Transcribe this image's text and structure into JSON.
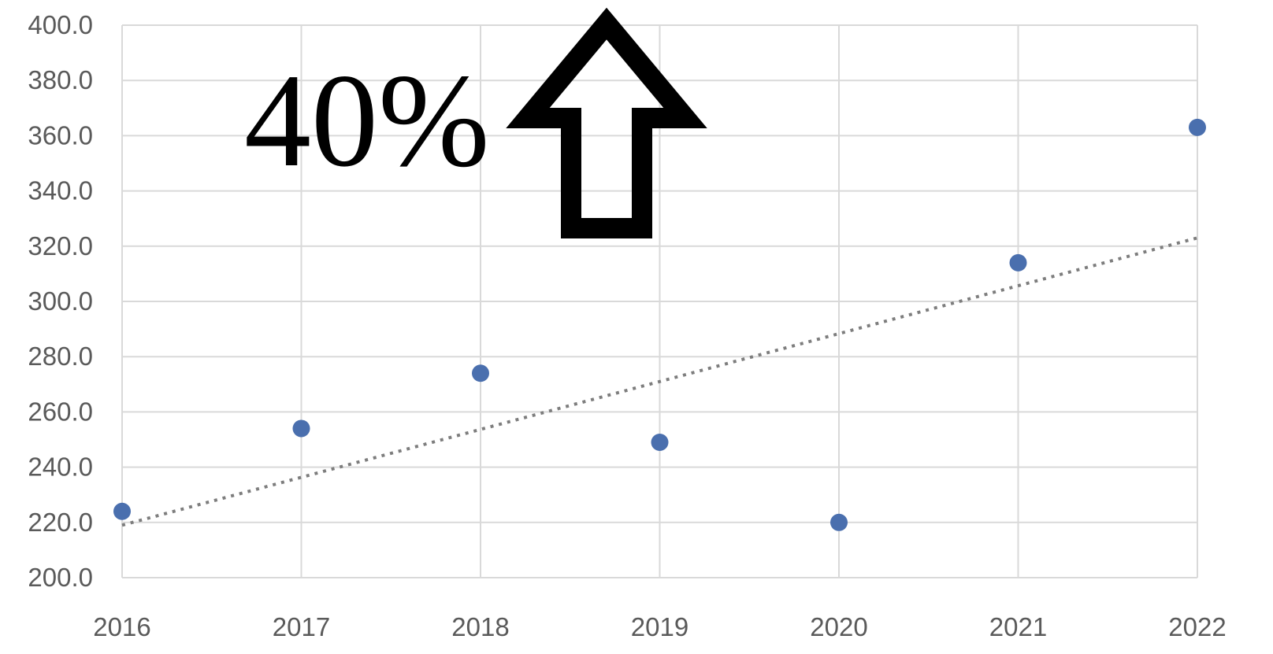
{
  "chart_data": {
    "type": "scatter",
    "title": "",
    "xlabel": "",
    "ylabel": "",
    "x": [
      2016,
      2017,
      2018,
      2019,
      2020,
      2021,
      2022
    ],
    "xticks": [
      "2016",
      "2017",
      "2018",
      "2019",
      "2020",
      "2021",
      "2022"
    ],
    "xlim": [
      2016,
      2022
    ],
    "ylim": [
      200,
      400
    ],
    "yticks": [
      "200.0",
      "220.0",
      "240.0",
      "260.0",
      "280.0",
      "300.0",
      "320.0",
      "340.0",
      "360.0",
      "380.0",
      "400.0"
    ],
    "series": [
      {
        "values": [
          224,
          254,
          274,
          249,
          220,
          314,
          363
        ]
      }
    ],
    "trendline": {
      "type": "linear",
      "style": "dotted",
      "start": [
        2016,
        219
      ],
      "end": [
        2022,
        323
      ]
    },
    "grid": true,
    "legend": "none",
    "annotation": {
      "text": "40%",
      "icon": "up-arrow-icon"
    },
    "colors": {
      "marker": "#4a6fae",
      "trendline": "#7d7d7d",
      "grid": "#d9d9d9",
      "tick_text": "#5a5a5a",
      "annotation": "#000000"
    }
  }
}
